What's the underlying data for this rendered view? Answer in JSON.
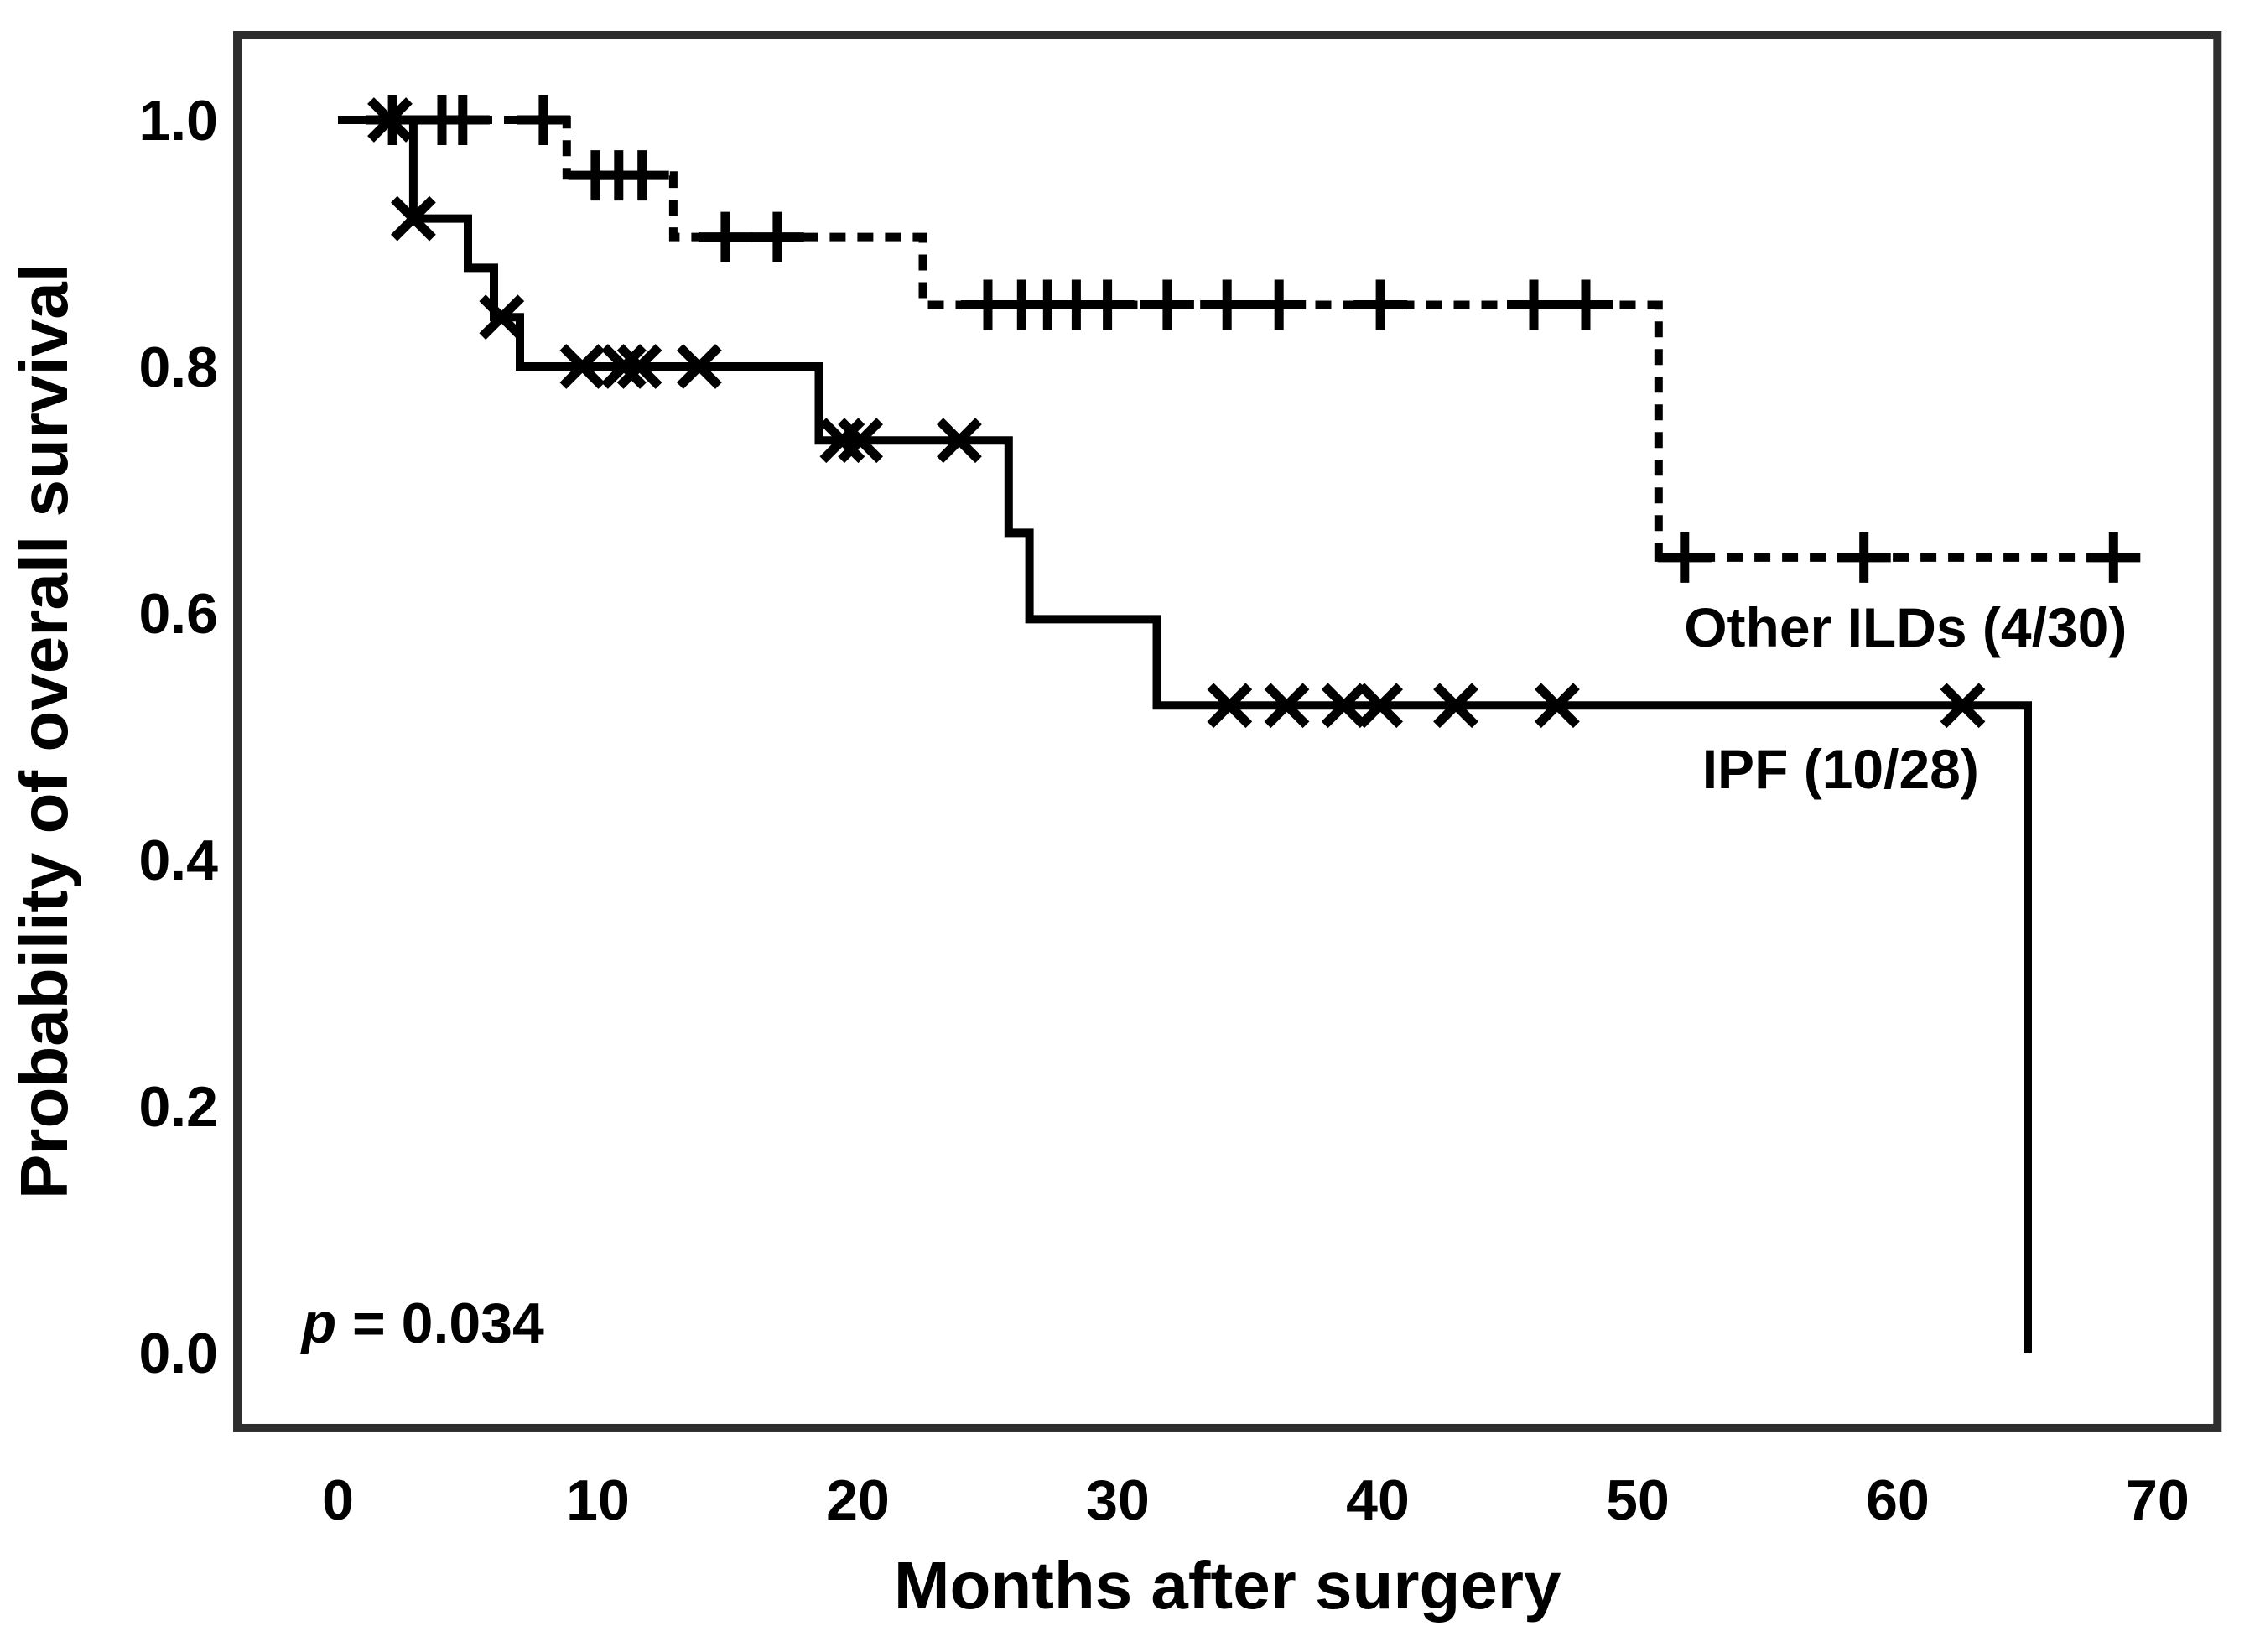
{
  "figure": {
    "background": "#ffffff",
    "frame_color": "#2e2e2e",
    "curve_color": "#000000",
    "text_color": "#000000"
  },
  "chart_data": {
    "type": "line",
    "subtype": "kaplan-meier-survival",
    "title": "",
    "xlabel": "Months after surgery",
    "ylabel": "Probability of overall survival",
    "x_ticks": [
      0,
      10,
      20,
      30,
      40,
      50,
      60,
      70
    ],
    "y_tick_values": [
      1.0,
      0.8,
      0.6,
      0.4,
      0.2,
      0.0
    ],
    "y_tick_labels": [
      "1.0",
      "0.8",
      "0.6",
      "0.4",
      "0.2",
      "0.0"
    ],
    "xlim": [
      -3.87,
      72.3
    ],
    "ylim": [
      -0.0612,
      1.0687
    ],
    "grid": false,
    "legend_position": "annotated-on-plot",
    "p_value": {
      "italic": "p",
      "rest": " = 0.034",
      "x": -1.4,
      "y": 0.008
    },
    "series": [
      {
        "name": "Other ILDs",
        "label": "Other ILDs (4/30)",
        "events_over_n": "4/30",
        "line_style": "dashed",
        "marker": "plus",
        "steps": [
          [
            0,
            1.0
          ],
          [
            8.8,
            1.0
          ],
          [
            8.8,
            0.955
          ],
          [
            12.9,
            0.955
          ],
          [
            12.9,
            0.905
          ],
          [
            22.5,
            0.905
          ],
          [
            22.5,
            0.85
          ],
          [
            50.8,
            0.85
          ],
          [
            50.8,
            0.645
          ],
          [
            69.3,
            0.645
          ]
        ],
        "censor_marks": [
          [
            2.1,
            1.0
          ],
          [
            4.0,
            1.0
          ],
          [
            4.8,
            1.0
          ],
          [
            7.9,
            1.0
          ],
          [
            9.9,
            0.955
          ],
          [
            10.8,
            0.955
          ],
          [
            11.7,
            0.955
          ],
          [
            14.9,
            0.905
          ],
          [
            16.9,
            0.905
          ],
          [
            25.0,
            0.85
          ],
          [
            26.3,
            0.85
          ],
          [
            27.3,
            0.85
          ],
          [
            28.4,
            0.85
          ],
          [
            29.6,
            0.85
          ],
          [
            31.9,
            0.85
          ],
          [
            34.2,
            0.85
          ],
          [
            36.2,
            0.85
          ],
          [
            40.1,
            0.85
          ],
          [
            46.0,
            0.85
          ],
          [
            48.0,
            0.85
          ],
          [
            51.8,
            0.645
          ],
          [
            58.7,
            0.645
          ],
          [
            68.3,
            0.645
          ]
        ],
        "label_pos": [
          60.3,
          0.589
        ]
      },
      {
        "name": "IPF",
        "label": "IPF (10/28)",
        "events_over_n": "10/28",
        "line_style": "solid",
        "marker": "x",
        "steps": [
          [
            0,
            1.0
          ],
          [
            2.9,
            1.0
          ],
          [
            2.9,
            0.92
          ],
          [
            5.0,
            0.92
          ],
          [
            5.0,
            0.88
          ],
          [
            6.0,
            0.88
          ],
          [
            6.0,
            0.84
          ],
          [
            7.0,
            0.84
          ],
          [
            7.0,
            0.8
          ],
          [
            18.5,
            0.8
          ],
          [
            18.5,
            0.74
          ],
          [
            25.8,
            0.74
          ],
          [
            25.8,
            0.665
          ],
          [
            26.6,
            0.665
          ],
          [
            26.6,
            0.595
          ],
          [
            31.5,
            0.595
          ],
          [
            31.5,
            0.525
          ],
          [
            65.0,
            0.525
          ],
          [
            65.0,
            0.0
          ]
        ],
        "censor_marks": [
          [
            2.0,
            1.0
          ],
          [
            2.9,
            0.92
          ],
          [
            6.3,
            0.84
          ],
          [
            9.4,
            0.8
          ],
          [
            11.0,
            0.8
          ],
          [
            11.6,
            0.8
          ],
          [
            13.9,
            0.8
          ],
          [
            19.4,
            0.74
          ],
          [
            20.1,
            0.74
          ],
          [
            23.9,
            0.74
          ],
          [
            34.3,
            0.525
          ],
          [
            36.5,
            0.525
          ],
          [
            38.7,
            0.525
          ],
          [
            40.1,
            0.525
          ],
          [
            43.0,
            0.525
          ],
          [
            46.9,
            0.525
          ],
          [
            62.5,
            0.525
          ]
        ],
        "label_pos": [
          57.8,
          0.474
        ]
      }
    ]
  }
}
